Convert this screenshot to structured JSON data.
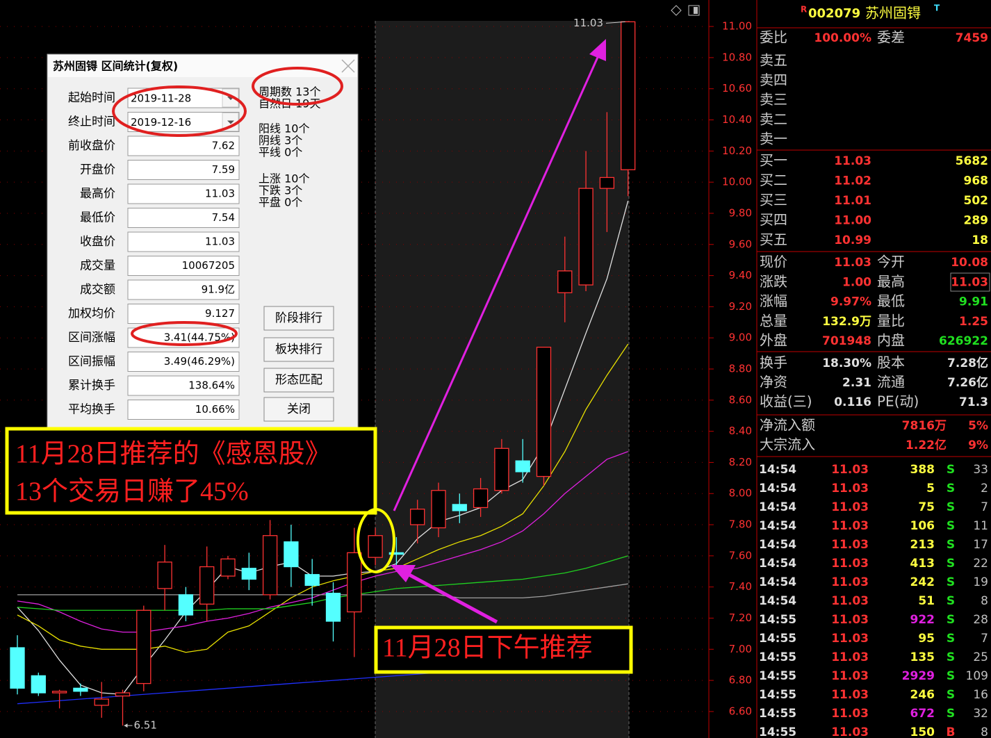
{
  "chart_data": {
    "type": "candlestick",
    "open": [
      7.01,
      6.83,
      6.72,
      6.75,
      6.64,
      6.7,
      6.78,
      7.39,
      7.35,
      7.29,
      7.47,
      7.52,
      7.35,
      7.69,
      7.48,
      7.36,
      7.24,
      7.59,
      7.62,
      7.8,
      7.78,
      7.93,
      7.91,
      8.02,
      8.21,
      8.11,
      9.29,
      9.34,
      9.96,
      10.08
    ],
    "high": [
      7.09,
      6.85,
      6.74,
      6.78,
      6.79,
      6.74,
      7.28,
      7.67,
      7.4,
      7.66,
      7.6,
      7.62,
      7.83,
      7.8,
      7.58,
      7.43,
      7.78,
      7.78,
      7.72,
      7.96,
      8.07,
      8.0,
      8.1,
      8.35,
      8.35,
      8.94,
      9.65,
      10.2,
      10.45,
      11.03
    ],
    "low": [
      6.71,
      6.7,
      6.62,
      6.7,
      6.56,
      6.51,
      6.73,
      7.25,
      7.18,
      7.18,
      7.45,
      7.38,
      7.32,
      7.4,
      7.28,
      7.05,
      6.95,
      7.54,
      7.54,
      7.68,
      7.72,
      7.81,
      7.85,
      8.0,
      8.07,
      8.05,
      9.1,
      9.3,
      9.68,
      9.91
    ],
    "close": [
      6.75,
      6.72,
      6.73,
      6.73,
      6.68,
      6.72,
      7.25,
      7.56,
      7.22,
      7.53,
      7.58,
      7.45,
      7.73,
      7.53,
      7.41,
      7.18,
      7.62,
      7.73,
      7.61,
      7.9,
      8.02,
      7.89,
      8.03,
      8.29,
      8.14,
      8.94,
      9.43,
      9.96,
      10.03,
      11.03
    ],
    "up_color": "#ff3232",
    "down_color": "#54ffff",
    "ma_series": [
      {
        "color": "#e0e0e0",
        "values": [
          7.27,
          7.12,
          6.93,
          6.77,
          6.72,
          6.71,
          6.89,
          7.06,
          7.24,
          7.38,
          7.53,
          7.49,
          7.53,
          7.56,
          7.47,
          7.47,
          7.49,
          7.5,
          7.55,
          7.71,
          7.82,
          7.86,
          7.91,
          8.02,
          8.09,
          8.31,
          8.67,
          9.03,
          9.38,
          9.88
        ]
      },
      {
        "color": "#e8e000",
        "values": [
          7.22,
          7.15,
          7.06,
          7.02,
          7.0,
          7.0,
          7.0,
          7.02,
          6.98,
          7.0,
          7.11,
          7.15,
          7.24,
          7.33,
          7.4,
          7.44,
          7.47,
          7.5,
          7.52,
          7.58,
          7.64,
          7.69,
          7.73,
          7.79,
          7.87,
          8.05,
          8.27,
          8.54,
          8.76,
          8.96
        ]
      },
      {
        "color": "#e020e0",
        "values": [
          7.31,
          7.29,
          7.24,
          7.18,
          7.13,
          7.11,
          7.11,
          7.13,
          7.15,
          7.18,
          7.2,
          7.23,
          7.27,
          7.3,
          7.33,
          7.38,
          7.43,
          7.47,
          7.5,
          7.52,
          7.56,
          7.6,
          7.64,
          7.69,
          7.76,
          7.87,
          8.0,
          8.11,
          8.22,
          8.27
        ]
      },
      {
        "color": "#20d020",
        "values": [
          7.27,
          7.26,
          7.25,
          7.25,
          7.25,
          7.25,
          7.25,
          7.25,
          7.25,
          7.25,
          7.26,
          7.26,
          7.26,
          7.28,
          7.3,
          7.33,
          7.35,
          7.37,
          7.39,
          7.4,
          7.41,
          7.42,
          7.43,
          7.44,
          7.45,
          7.47,
          7.49,
          7.52,
          7.56,
          7.6
        ]
      },
      {
        "color": "#a0a0a0",
        "values": [
          7.35,
          7.35,
          7.35,
          7.35,
          7.35,
          7.35,
          7.35,
          7.35,
          7.35,
          7.35,
          7.35,
          7.35,
          7.35,
          7.35,
          7.35,
          7.35,
          7.35,
          7.35,
          7.35,
          7.35,
          7.35,
          7.33,
          7.33,
          7.33,
          7.33,
          7.34,
          7.36,
          7.38,
          7.4,
          7.42
        ]
      },
      {
        "color": "#2030ff",
        "values": [
          6.65,
          6.66,
          6.67,
          6.68,
          6.69,
          6.7,
          6.71,
          6.72,
          6.73,
          6.74,
          6.75,
          6.76,
          6.77,
          6.78,
          6.79,
          6.8,
          6.81,
          6.82,
          6.83,
          6.84,
          6.85,
          6.86,
          6.87,
          6.88,
          6.89,
          6.9,
          6.91,
          6.92,
          6.95,
          7.0
        ]
      }
    ],
    "ylim": [
      6.43,
      11.17
    ],
    "yticks": [
      {
        "value": 11,
        "label": "11.00"
      },
      {
        "value": 10.8,
        "label": "10.80"
      },
      {
        "value": 10.6,
        "label": "10.60"
      },
      {
        "value": 10.4,
        "label": "10.40"
      },
      {
        "value": 10.2,
        "label": "10.20"
      },
      {
        "value": 10,
        "label": "10.00"
      },
      {
        "value": 9.8,
        "label": "9.80"
      },
      {
        "value": 9.6,
        "label": "9.60"
      },
      {
        "value": 9.4,
        "label": "9.40"
      },
      {
        "value": 9.2,
        "label": "9.20"
      },
      {
        "value": 9,
        "label": "9.00"
      },
      {
        "value": 8.8,
        "label": "8.80"
      },
      {
        "value": 8.6,
        "label": "8.60"
      },
      {
        "value": 8.4,
        "label": "8.40"
      },
      {
        "value": 8.2,
        "label": "8.20"
      },
      {
        "value": 8,
        "label": "8.00"
      },
      {
        "value": 7.8,
        "label": "7.80"
      },
      {
        "value": 7.6,
        "label": "7.60"
      },
      {
        "value": 7.4,
        "label": "7.40"
      },
      {
        "value": 7.2,
        "label": "7.20"
      },
      {
        "value": 7,
        "label": "7.00"
      },
      {
        "value": 6.8,
        "label": "6.80"
      },
      {
        "value": 6.6,
        "label": "6.60"
      }
    ],
    "grid": true,
    "high_label": "11.03",
    "low_label": "6.51"
  },
  "dialog": {
    "title": "苏州固锝 区间统计(复权)",
    "rows": [
      [
        "起始时间",
        "2019-11-28"
      ],
      [
        "终止时间",
        "2019-12-16"
      ],
      [
        "前收盘价",
        "7.62"
      ],
      [
        "开盘价",
        "7.59"
      ],
      [
        "最高价",
        "11.03"
      ],
      [
        "最低价",
        "7.54"
      ],
      [
        "收盘价",
        "11.03"
      ],
      [
        "成交量",
        "10067205"
      ],
      [
        "成交额",
        "91.9亿"
      ],
      [
        "加权均价",
        "9.127"
      ],
      [
        "区间涨幅",
        "3.41(44.75%)"
      ],
      [
        "区间振幅",
        "3.49(46.29%)"
      ],
      [
        "累计换手",
        "138.64%"
      ],
      [
        "平均换手",
        "10.66%"
      ]
    ],
    "stats": [
      [
        "周期数 13个",
        "自然日 19天"
      ],
      [
        "阳线 10个",
        "阴线 3个",
        "平线 0个"
      ],
      [
        "上涨 10个",
        "下跌 3个",
        "平盘 0个"
      ]
    ],
    "buttons": [
      "阶段排行",
      "板块排行",
      "形态匹配",
      "关闭"
    ]
  },
  "annotations": {
    "box1": [
      "11月28日推荐的《感恩股》",
      "13个交易日赚了45%"
    ],
    "box2": "11月28日下午推荐"
  },
  "quote": {
    "prefix": "R",
    "code": "002079",
    "name": "苏州固锝",
    "suffix": "T",
    "webi": [
      "委比",
      "100.00%",
      "委差",
      "7459"
    ],
    "sell": [
      "卖五",
      "卖四",
      "卖三",
      "卖二",
      "卖一"
    ],
    "buy": [
      [
        "买一",
        "11.03",
        "5682"
      ],
      [
        "买二",
        "11.02",
        "968"
      ],
      [
        "买三",
        "11.01",
        "502"
      ],
      [
        "买四",
        "11.00",
        "289"
      ],
      [
        "买五",
        "10.99",
        "18"
      ]
    ],
    "stats": [
      [
        "现价",
        "11.03",
        "今开",
        "10.08"
      ],
      [
        "涨跌",
        "1.00",
        "最高",
        "11.03"
      ],
      [
        "涨幅",
        "9.97%",
        "最低",
        "9.91"
      ],
      [
        "总量",
        "132.9万",
        "量比",
        "1.25"
      ],
      [
        "外盘",
        "701948",
        "内盘",
        "626922"
      ]
    ],
    "stats_colors": [
      [
        "#ff3232",
        "#ff3232"
      ],
      [
        "#ff3232",
        "#ff3232"
      ],
      [
        "#ff3232",
        "#20e020"
      ],
      [
        "#ffff40",
        "#ff3232"
      ],
      [
        "#ff3232",
        "#20e020"
      ]
    ],
    "stats2": [
      [
        "换手",
        "18.30%",
        "股本",
        "7.28亿"
      ],
      [
        "净资",
        "2.31",
        "流通",
        "7.26亿"
      ],
      [
        "收益(三)",
        "0.116",
        "PE(动)",
        "71.3"
      ]
    ],
    "flow": [
      [
        "净流入额",
        "7816万",
        "5%"
      ],
      [
        "大宗流入",
        "1.22亿",
        "9%"
      ]
    ],
    "ticks": [
      [
        "14:54",
        "11.03",
        "388",
        "S",
        "33"
      ],
      [
        "14:54",
        "11.03",
        "5",
        "S",
        "2"
      ],
      [
        "14:54",
        "11.03",
        "75",
        "S",
        "7"
      ],
      [
        "14:54",
        "11.03",
        "106",
        "S",
        "11"
      ],
      [
        "14:54",
        "11.03",
        "213",
        "S",
        "17"
      ],
      [
        "14:54",
        "11.03",
        "413",
        "S",
        "22"
      ],
      [
        "14:54",
        "11.03",
        "242",
        "S",
        "19"
      ],
      [
        "14:54",
        "11.03",
        "51",
        "S",
        "8"
      ],
      [
        "14:55",
        "11.03",
        "922",
        "S",
        "28"
      ],
      [
        "14:55",
        "11.03",
        "95",
        "S",
        "7"
      ],
      [
        "14:55",
        "11.03",
        "135",
        "S",
        "25"
      ],
      [
        "14:55",
        "11.03",
        "2929",
        "S",
        "109"
      ],
      [
        "14:55",
        "11.03",
        "246",
        "S",
        "16"
      ],
      [
        "14:55",
        "11.03",
        "672",
        "S",
        "32"
      ],
      [
        "14:55",
        "11.03",
        "150",
        "B",
        "8"
      ]
    ],
    "tick_vol_colors": [
      "#ffff40",
      "#ffff40",
      "#ffff40",
      "#ffff40",
      "#ffff40",
      "#ffff40",
      "#ffff40",
      "#ffff40",
      "#e020e0",
      "#ffff40",
      "#ffff40",
      "#e020e0",
      "#ffff40",
      "#e020e0",
      "#ffff40"
    ],
    "side_colors": {
      "S": "#20e020",
      "B": "#ff3232"
    }
  }
}
